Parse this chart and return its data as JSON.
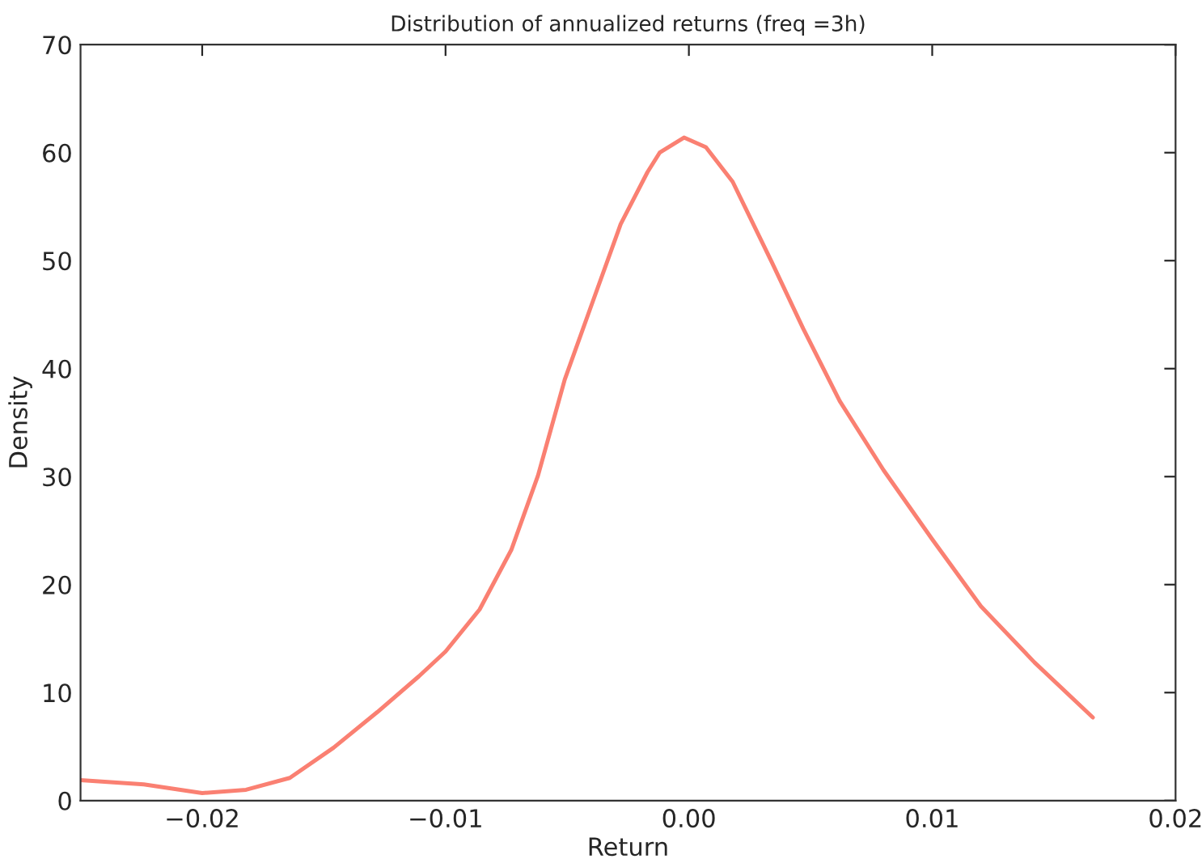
{
  "chart_data": {
    "type": "line",
    "title": "Distribution of annualized returns (freq =3h)",
    "xlabel": "Return",
    "ylabel": "Density",
    "series": [
      {
        "color": "#fa8072",
        "x": [
          -0.025,
          -0.0224,
          -0.02,
          -0.0182,
          -0.0164,
          -0.0146,
          -0.0128,
          -0.0111,
          -0.01,
          -0.0086,
          -0.0073,
          -0.0062,
          -0.0051,
          -0.004,
          -0.0028,
          -0.0017,
          -0.0012,
          -0.0002,
          0.0007,
          0.0018,
          0.0034,
          0.0047,
          0.0062,
          0.008,
          0.01,
          0.012,
          0.0142,
          0.0166
        ],
        "values": [
          1.9,
          1.5,
          0.7,
          1.0,
          2.1,
          4.9,
          8.2,
          11.5,
          13.8,
          17.7,
          23.2,
          30.1,
          39.0,
          45.9,
          53.4,
          58.2,
          60.0,
          61.4,
          60.5,
          57.3,
          49.9,
          43.7,
          37.0,
          30.6,
          24.2,
          18.0,
          12.8,
          7.7
        ]
      }
    ],
    "xlim": [
      -0.025,
      0.02
    ],
    "xticks": [
      {
        "value": -0.02,
        "label": "−0.02"
      },
      {
        "value": -0.01,
        "label": "−0.01"
      },
      {
        "value": 0,
        "label": "0.00"
      },
      {
        "value": 0.01,
        "label": "0.01"
      },
      {
        "value": 0.02,
        "label": "0.02"
      }
    ],
    "ylim": [
      0,
      70
    ],
    "yticks": [
      0,
      10,
      20,
      30,
      40,
      50,
      60,
      70
    ],
    "grid": false,
    "marker": "none",
    "line_style": "solid"
  }
}
